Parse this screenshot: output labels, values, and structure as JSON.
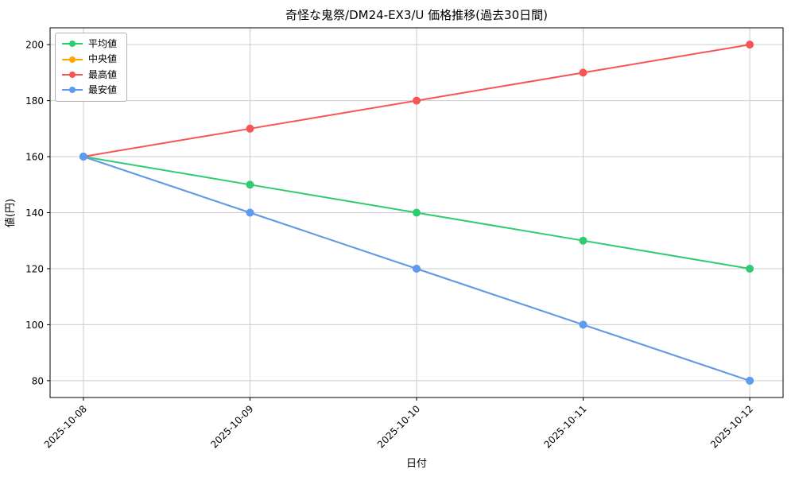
{
  "figure": {
    "title": "奇怪な鬼祭/DM24-EX3/U 価格推移(過去30日間)",
    "xlabel": "日付",
    "ylabel": "値(円)"
  },
  "chart_data": {
    "type": "line",
    "title": "奇怪な鬼祭/DM24-EX3/U 価格推移(過去30日間)",
    "xlabel": "日付",
    "ylabel": "値(円)",
    "x": [
      "2025-10-08",
      "2025-10-09",
      "2025-10-10",
      "2025-10-11",
      "2025-10-12"
    ],
    "series": [
      {
        "name": "平均値",
        "color": "#2ecc71",
        "values": [
          160,
          150,
          140,
          130,
          120
        ]
      },
      {
        "name": "中央値",
        "color": "#ffa500",
        "values": [
          160,
          140,
          120,
          100,
          80
        ],
        "note": "coincides with 最安値 line and is hidden beneath it"
      },
      {
        "name": "最高値",
        "color": "#f85454",
        "values": [
          160,
          170,
          180,
          190,
          200
        ]
      },
      {
        "name": "最安値",
        "color": "#5b9bf5",
        "values": [
          160,
          140,
          120,
          100,
          80
        ]
      }
    ],
    "yticks": [
      80,
      100,
      120,
      140,
      160,
      180,
      200
    ],
    "ylim": [
      74,
      206
    ],
    "grid": true,
    "legend_position": "upper-left",
    "colors": {
      "background": "#ffffff",
      "grid": "#cccccc",
      "axis": "#000000",
      "text": "#000000"
    }
  }
}
